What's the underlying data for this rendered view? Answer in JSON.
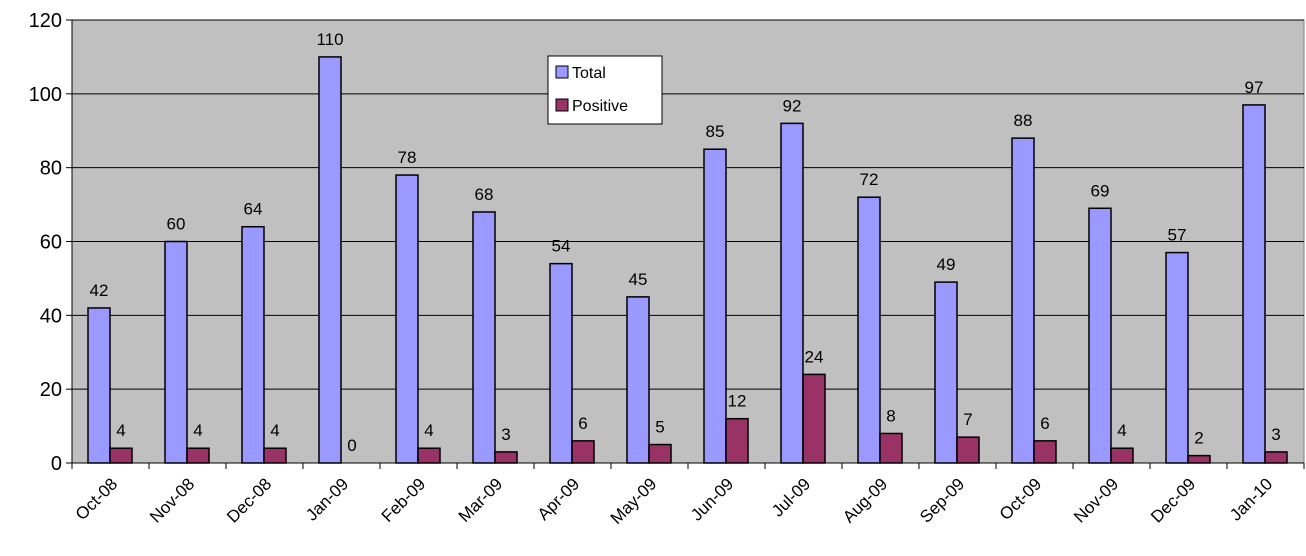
{
  "chart_data": {
    "type": "bar",
    "title": "",
    "xlabel": "",
    "ylabel": "",
    "categories": [
      "Oct-08",
      "Nov-08",
      "Dec-08",
      "Jan-09",
      "Feb-09",
      "Mar-09",
      "Apr-09",
      "May-09",
      "Jun-09",
      "Jul-09",
      "Aug-09",
      "Sep-09",
      "Oct-09",
      "Nov-09",
      "Dec-09",
      "Jan-10"
    ],
    "series": [
      {
        "name": "Total",
        "color": "#9999ff",
        "values": [
          42,
          60,
          64,
          110,
          78,
          68,
          54,
          45,
          85,
          92,
          72,
          49,
          88,
          69,
          57,
          97
        ]
      },
      {
        "name": "Positive",
        "color": "#993366",
        "values": [
          4,
          4,
          4,
          0,
          4,
          3,
          6,
          5,
          12,
          24,
          8,
          7,
          6,
          4,
          2,
          3
        ]
      }
    ],
    "ylim": [
      0,
      120
    ],
    "yticks": [
      0,
      20,
      40,
      60,
      80,
      100,
      120
    ],
    "grid": true,
    "plot_background": "#c0c0c0",
    "legend_position": "top-center"
  }
}
